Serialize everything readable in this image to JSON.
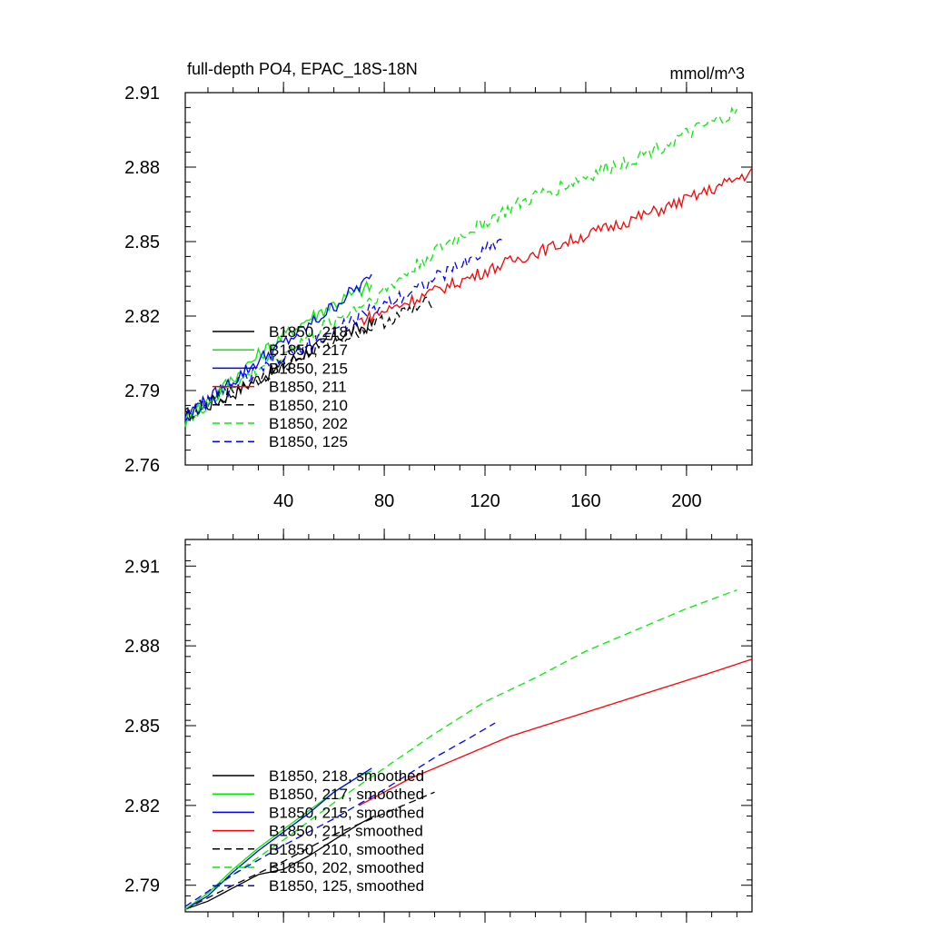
{
  "chart_data": [
    {
      "type": "line",
      "title": "full-depth PO4, EPAC_18S-18N",
      "units_label": "mmol/m^3",
      "xlabel": "",
      "ylabel": "",
      "xlim": [
        1,
        226
      ],
      "ylim": [
        2.76,
        2.91
      ],
      "xticks": [
        40,
        80,
        120,
        160,
        200
      ],
      "yticks": [
        2.76,
        2.79,
        2.82,
        2.85,
        2.88,
        2.91
      ],
      "xtick_labels": [
        "40",
        "80",
        "120",
        "160",
        "200"
      ],
      "ytick_labels": [
        "2.76",
        "2.79",
        "2.82",
        "2.85",
        "2.88",
        "2.91"
      ],
      "legend_position": "lower-left",
      "series": [
        {
          "name": "B1850, 218",
          "color": "#000000",
          "dash": "solid",
          "x": [
            1,
            10,
            20,
            30,
            40,
            50,
            60,
            70,
            76
          ],
          "y": [
            2.78,
            2.784,
            2.789,
            2.795,
            2.8,
            2.806,
            2.811,
            2.815,
            2.817
          ],
          "noise": 0.003
        },
        {
          "name": "B1850, 217",
          "color": "#00ee00",
          "dash": "solid",
          "x": [
            1,
            10,
            20,
            30,
            40,
            50,
            60,
            70,
            75
          ],
          "y": [
            2.778,
            2.786,
            2.795,
            2.804,
            2.812,
            2.819,
            2.825,
            2.83,
            2.832
          ],
          "noise": 0.003
        },
        {
          "name": "B1850, 215",
          "color": "#0000ff",
          "dash": "solid",
          "x": [
            1,
            10,
            20,
            30,
            40,
            50,
            60,
            70,
            75
          ],
          "y": [
            2.78,
            2.786,
            2.794,
            2.802,
            2.809,
            2.816,
            2.824,
            2.832,
            2.835
          ],
          "noise": 0.003
        },
        {
          "name": "B1850, 211",
          "color": "#ff0000",
          "dash": "solid",
          "x": [
            70,
            90,
            110,
            130,
            150,
            170,
            190,
            210,
            226
          ],
          "y": [
            2.818,
            2.826,
            2.834,
            2.842,
            2.849,
            2.856,
            2.863,
            2.871,
            2.878
          ],
          "noise": 0.0025
        },
        {
          "name": "B1850, 210",
          "color": "#000000",
          "dash": "dashed",
          "x": [
            1,
            20,
            40,
            60,
            80,
            100
          ],
          "y": [
            2.78,
            2.79,
            2.8,
            2.81,
            2.818,
            2.826
          ],
          "noise": 0.003
        },
        {
          "name": "B1850, 202",
          "color": "#00ee00",
          "dash": "dashed",
          "x": [
            1,
            20,
            40,
            60,
            80,
            100,
            120,
            140,
            160,
            180,
            200,
            220
          ],
          "y": [
            2.778,
            2.792,
            2.805,
            2.818,
            2.83,
            2.846,
            2.858,
            2.868,
            2.876,
            2.884,
            2.893,
            2.902
          ],
          "noise": 0.003
        },
        {
          "name": "B1850, 125",
          "color": "#0000ff",
          "dash": "dashed",
          "x": [
            1,
            20,
            40,
            60,
            80,
            100,
            115,
            127
          ],
          "y": [
            2.779,
            2.792,
            2.803,
            2.814,
            2.825,
            2.835,
            2.843,
            2.852
          ],
          "noise": 0.003
        }
      ]
    },
    {
      "type": "line",
      "title": "",
      "xlabel": "",
      "ylabel": "",
      "xlim": [
        1,
        226
      ],
      "ylim": [
        2.78,
        2.92
      ],
      "xticks": [
        40,
        80,
        120,
        160,
        200
      ],
      "yticks": [
        2.79,
        2.82,
        2.85,
        2.88,
        2.91
      ],
      "xtick_labels": [],
      "ytick_labels": [
        "2.79",
        "2.82",
        "2.85",
        "2.88",
        "2.91"
      ],
      "legend_position": "lower-left",
      "series": [
        {
          "name": "B1850, 218, smoothed",
          "color": "#000000",
          "dash": "solid",
          "x": [
            1,
            10,
            20,
            30,
            40,
            50,
            60,
            70,
            76
          ],
          "y": [
            2.781,
            2.784,
            2.789,
            2.794,
            2.796,
            2.801,
            2.807,
            2.813,
            2.816
          ],
          "noise": 0
        },
        {
          "name": "B1850, 217, smoothed",
          "color": "#00ee00",
          "dash": "solid",
          "x": [
            1,
            10,
            20,
            30,
            40,
            50,
            60,
            70,
            75
          ],
          "y": [
            2.781,
            2.787,
            2.796,
            2.804,
            2.811,
            2.818,
            2.825,
            2.831,
            2.833
          ],
          "noise": 0
        },
        {
          "name": "B1850, 215, smoothed",
          "color": "#0000ff",
          "dash": "solid",
          "x": [
            1,
            10,
            20,
            30,
            40,
            50,
            60,
            70,
            75
          ],
          "y": [
            2.781,
            2.786,
            2.795,
            2.803,
            2.81,
            2.817,
            2.825,
            2.831,
            2.834
          ],
          "noise": 0
        },
        {
          "name": "B1850, 211, smoothed",
          "color": "#ff0000",
          "dash": "solid",
          "x": [
            70,
            90,
            110,
            130,
            150,
            170,
            190,
            210,
            226
          ],
          "y": [
            2.82,
            2.83,
            2.838,
            2.846,
            2.852,
            2.858,
            2.864,
            2.87,
            2.875
          ],
          "noise": 0
        },
        {
          "name": "B1850, 210, smoothed",
          "color": "#000000",
          "dash": "dashed",
          "x": [
            1,
            20,
            40,
            60,
            80,
            100
          ],
          "y": [
            2.781,
            2.79,
            2.799,
            2.809,
            2.817,
            2.825
          ],
          "noise": 0
        },
        {
          "name": "B1850, 202, smoothed",
          "color": "#00ee00",
          "dash": "dashed",
          "x": [
            1,
            20,
            40,
            60,
            80,
            100,
            120,
            140,
            160,
            180,
            200,
            220
          ],
          "y": [
            2.781,
            2.794,
            2.807,
            2.821,
            2.834,
            2.847,
            2.859,
            2.868,
            2.878,
            2.886,
            2.894,
            2.901
          ],
          "noise": 0
        },
        {
          "name": "B1850, 125, smoothed",
          "color": "#0000ff",
          "dash": "dashed",
          "x": [
            1,
            20,
            40,
            60,
            80,
            100,
            115,
            124
          ],
          "y": [
            2.782,
            2.794,
            2.805,
            2.815,
            2.826,
            2.838,
            2.846,
            2.851
          ],
          "noise": 0
        }
      ]
    }
  ]
}
